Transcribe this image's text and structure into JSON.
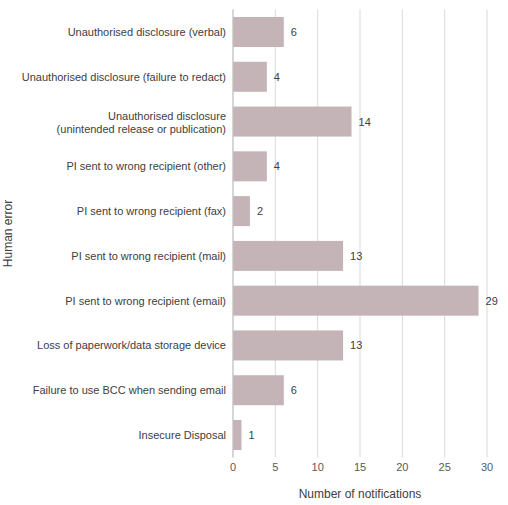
{
  "chart_data": {
    "type": "bar",
    "orientation": "horizontal",
    "y_label": "Human error",
    "x_label": "Number of notifications",
    "categories": [
      "Unauthorised disclosure (verbal)",
      "Unauthorised disclosure (failure to redact)",
      "Unauthorised disclosure (unintended release or publication)",
      "PI sent to wrong recipient (other)",
      "PI sent to wrong recipient (fax)",
      "PI sent to wrong recipient (mail)",
      "PI sent to wrong recipient (email)",
      "Loss of paperwork/data storage device",
      "Failure to use BCC when sending email",
      "Insecure Disposal"
    ],
    "values": [
      6,
      4,
      14,
      4,
      2,
      13,
      29,
      13,
      6,
      1
    ],
    "color": "#c4b4b8",
    "xlim": [
      0,
      30
    ],
    "xticks": [
      0,
      5,
      10,
      15,
      20,
      25,
      30
    ],
    "grid": true,
    "data_labels": true
  }
}
